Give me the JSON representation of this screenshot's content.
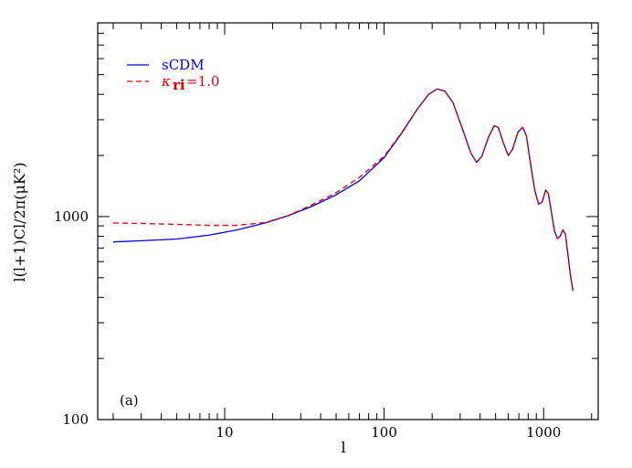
{
  "chart_data": {
    "type": "line",
    "xlabel": "l",
    "ylabel": "l(l+1)Cl/2π(μK²)",
    "panel_label": "(a)",
    "x_scale": "log",
    "y_scale": "log",
    "xlim": [
      1.6,
      2200
    ],
    "ylim": [
      100,
      9000
    ],
    "x_ticks": [
      {
        "value": 10,
        "label": "10"
      },
      {
        "value": 100,
        "label": "100"
      },
      {
        "value": 1000,
        "label": "1000"
      }
    ],
    "y_ticks": [
      {
        "value": 100,
        "label": "100"
      },
      {
        "value": 1000,
        "label": "1000"
      }
    ],
    "grid": false,
    "legend_position": "top-left",
    "legend_subscript": "ri",
    "series": [
      {
        "name": "sCDM",
        "color": "#0000cc",
        "dash": "solid",
        "points": [
          [
            2,
            750
          ],
          [
            3,
            760
          ],
          [
            5,
            775
          ],
          [
            8,
            810
          ],
          [
            12,
            860
          ],
          [
            18,
            930
          ],
          [
            25,
            1010
          ],
          [
            35,
            1120
          ],
          [
            50,
            1280
          ],
          [
            70,
            1500
          ],
          [
            100,
            1950
          ],
          [
            130,
            2600
          ],
          [
            160,
            3350
          ],
          [
            190,
            4000
          ],
          [
            215,
            4250
          ],
          [
            240,
            4150
          ],
          [
            270,
            3650
          ],
          [
            310,
            2700
          ],
          [
            350,
            2050
          ],
          [
            380,
            1850
          ],
          [
            410,
            1980
          ],
          [
            450,
            2450
          ],
          [
            490,
            2800
          ],
          [
            520,
            2750
          ],
          [
            560,
            2300
          ],
          [
            600,
            2000
          ],
          [
            640,
            2150
          ],
          [
            690,
            2600
          ],
          [
            740,
            2750
          ],
          [
            780,
            2500
          ],
          [
            830,
            1800
          ],
          [
            880,
            1350
          ],
          [
            930,
            1150
          ],
          [
            980,
            1180
          ],
          [
            1030,
            1350
          ],
          [
            1070,
            1300
          ],
          [
            1120,
            1050
          ],
          [
            1170,
            850
          ],
          [
            1220,
            780
          ],
          [
            1270,
            800
          ],
          [
            1320,
            860
          ],
          [
            1370,
            820
          ],
          [
            1420,
            650
          ],
          [
            1480,
            500
          ],
          [
            1530,
            430
          ]
        ]
      },
      {
        "name": "κ=1.0",
        "color": "#dd0000",
        "dash": "dashed",
        "points": [
          [
            2,
            930
          ],
          [
            3,
            925
          ],
          [
            5,
            915
          ],
          [
            8,
            905
          ],
          [
            12,
            905
          ],
          [
            18,
            935
          ],
          [
            25,
            1010
          ],
          [
            35,
            1140
          ],
          [
            50,
            1310
          ],
          [
            70,
            1560
          ],
          [
            100,
            1980
          ],
          [
            130,
            2620
          ],
          [
            160,
            3350
          ],
          [
            190,
            4000
          ],
          [
            215,
            4250
          ],
          [
            240,
            4150
          ],
          [
            270,
            3650
          ],
          [
            310,
            2700
          ],
          [
            350,
            2050
          ],
          [
            380,
            1850
          ],
          [
            410,
            1980
          ],
          [
            450,
            2450
          ],
          [
            490,
            2800
          ],
          [
            520,
            2750
          ],
          [
            560,
            2300
          ],
          [
            600,
            2000
          ],
          [
            640,
            2150
          ],
          [
            690,
            2600
          ],
          [
            740,
            2750
          ],
          [
            780,
            2500
          ],
          [
            830,
            1800
          ],
          [
            880,
            1350
          ],
          [
            930,
            1150
          ],
          [
            980,
            1180
          ],
          [
            1030,
            1350
          ],
          [
            1070,
            1300
          ],
          [
            1120,
            1050
          ],
          [
            1170,
            850
          ],
          [
            1220,
            780
          ],
          [
            1270,
            800
          ],
          [
            1320,
            860
          ],
          [
            1370,
            820
          ],
          [
            1420,
            650
          ],
          [
            1480,
            500
          ],
          [
            1530,
            430
          ]
        ]
      }
    ]
  }
}
